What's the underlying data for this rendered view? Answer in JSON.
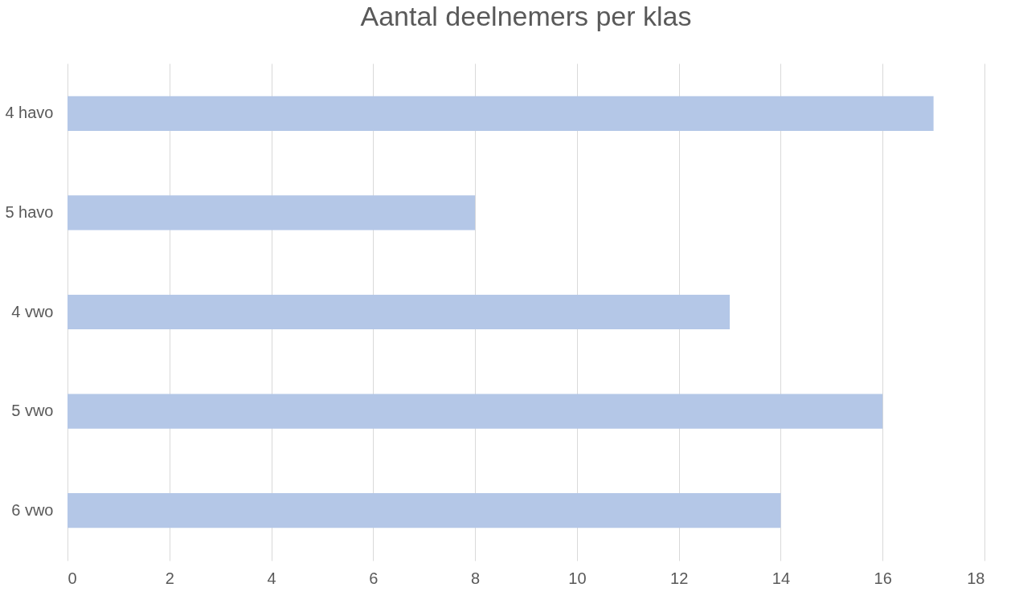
{
  "chart_data": {
    "type": "bar",
    "orientation": "horizontal",
    "title": "Aantal deelnemers per klas",
    "categories": [
      "4 havo",
      "5 havo",
      "4 vwo",
      "5 vwo",
      "6 vwo"
    ],
    "values": [
      17,
      8,
      13,
      16,
      14
    ],
    "color": "#b4c7e7",
    "xlim": [
      0,
      18
    ],
    "xticks": [
      0,
      2,
      4,
      6,
      8,
      10,
      12,
      14,
      16,
      18
    ],
    "grid": "x"
  }
}
